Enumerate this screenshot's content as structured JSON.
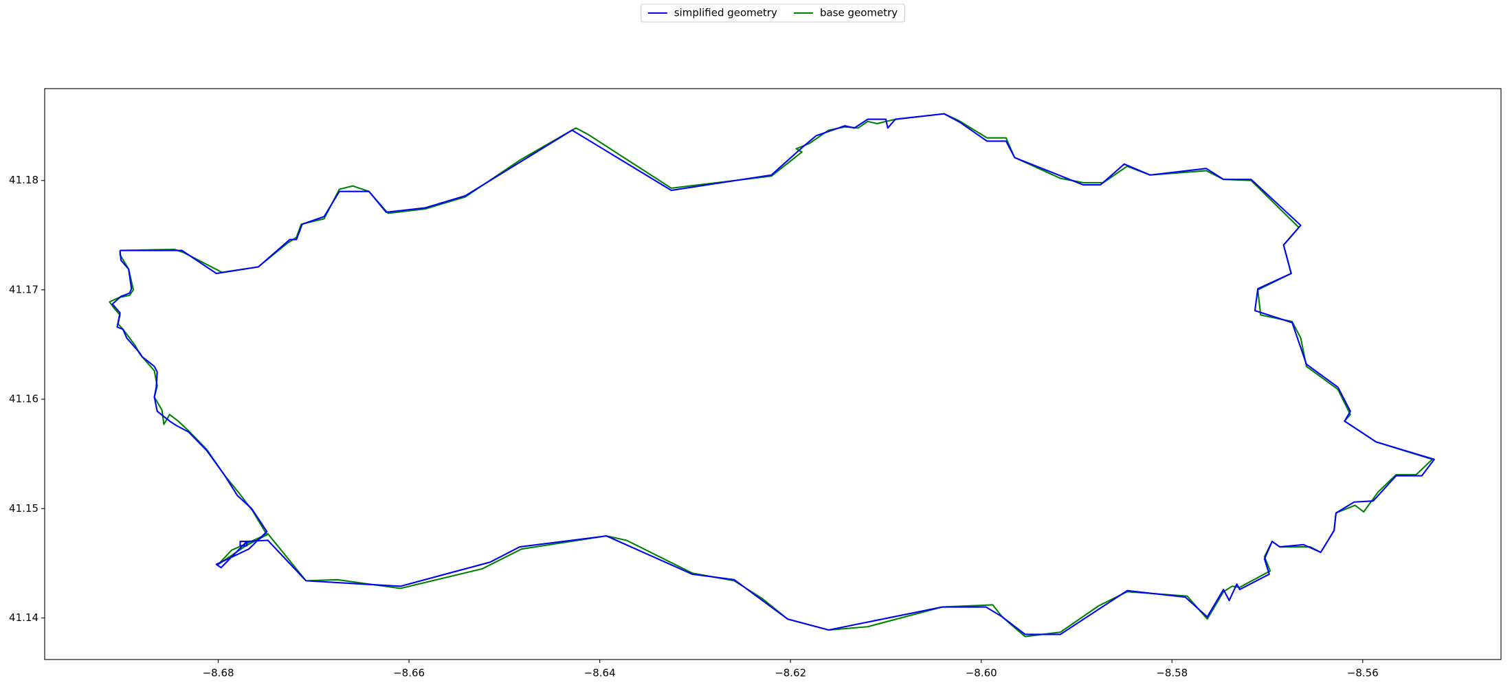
{
  "chart_data": {
    "type": "line",
    "legend": "upper center",
    "xlim": [
      -8.6982,
      -8.5455
    ],
    "ylim": [
      41.1362,
      41.1884
    ],
    "xticks": [
      {
        "value": -8.68,
        "label": "−8.68"
      },
      {
        "value": -8.66,
        "label": "−8.66"
      },
      {
        "value": -8.64,
        "label": "−8.64"
      },
      {
        "value": -8.62,
        "label": "−8.62"
      },
      {
        "value": -8.6,
        "label": "−8.60"
      },
      {
        "value": -8.58,
        "label": "−8.58"
      },
      {
        "value": -8.56,
        "label": "−8.56"
      }
    ],
    "yticks": [
      41.14,
      41.15,
      41.16,
      41.17,
      41.18
    ],
    "series": [
      {
        "name": "simplified geometry",
        "color": "#0000ff",
        "x": [
          -8.6903,
          -8.6838,
          -8.6802,
          -8.6758,
          -8.6725,
          -8.6718,
          -8.6712,
          -8.6689,
          -8.6673,
          -8.6642,
          -8.6624,
          -8.6583,
          -8.6541,
          -8.6429,
          -8.6325,
          -8.622,
          -8.6188,
          -8.6173,
          -8.6143,
          -8.6133,
          -8.6119,
          -8.61,
          -8.6098,
          -8.609,
          -8.6039,
          -8.6022,
          -8.5994,
          -8.5974,
          -8.5965,
          -8.5893,
          -8.5875,
          -8.585,
          -8.5823,
          -8.5764,
          -8.5746,
          -8.5717,
          -8.5665,
          -8.5683,
          -8.5675,
          -8.571,
          -8.5713,
          -8.5674,
          -8.5659,
          -8.5626,
          -8.5613,
          -8.5619,
          -8.5586,
          -8.5525,
          -8.5538,
          -8.5565,
          -8.5589,
          -8.5609,
          -8.5628,
          -8.563,
          -8.5644,
          -8.5662,
          -8.5687,
          -8.5695,
          -8.5703,
          -8.5698,
          -8.5729,
          -8.5732,
          -8.574,
          -8.5746,
          -8.5763,
          -8.5786,
          -8.5847,
          -8.5917,
          -8.5954,
          -8.5978,
          -8.5995,
          -8.6041,
          -8.616,
          -8.6203,
          -8.6259,
          -8.6303,
          -8.6393,
          -8.6484,
          -8.6515,
          -8.6609,
          -8.6708,
          -8.6748,
          -8.677,
          -8.677,
          -8.6777,
          -8.6777,
          -8.677,
          -8.6797,
          -8.6802,
          -8.6768,
          -8.6749,
          -8.6765,
          -8.678,
          -8.6793,
          -8.6812,
          -8.6831,
          -8.6844,
          -8.6851,
          -8.6864,
          -8.6867,
          -8.6865,
          -8.6864,
          -8.6867,
          -8.688,
          -8.6882,
          -8.6896,
          -8.69,
          -8.6906,
          -8.6903,
          -8.6911,
          -8.6902,
          -8.6893,
          -8.6891,
          -8.6894,
          -8.6902,
          -8.6903
        ],
        "y": [
          41.1736,
          41.1736,
          41.1715,
          41.1721,
          41.1746,
          41.1746,
          41.176,
          41.1767,
          41.179,
          41.179,
          41.1771,
          41.1775,
          41.1786,
          41.1846,
          41.1791,
          41.1805,
          41.183,
          41.1841,
          41.185,
          41.1848,
          41.1856,
          41.1856,
          41.1848,
          41.1856,
          41.1861,
          41.1853,
          41.1836,
          41.1836,
          41.1821,
          41.1796,
          41.1796,
          41.1815,
          41.1805,
          41.1811,
          41.1801,
          41.1801,
          41.1759,
          41.1741,
          41.1715,
          41.1701,
          41.1681,
          41.167,
          41.1632,
          41.1611,
          41.1589,
          41.158,
          41.1561,
          41.1545,
          41.153,
          41.153,
          41.1507,
          41.1506,
          41.1496,
          41.148,
          41.146,
          41.1467,
          41.1465,
          41.147,
          41.1454,
          41.144,
          41.1426,
          41.1431,
          41.1416,
          41.1426,
          41.1401,
          41.1419,
          41.1425,
          41.1385,
          41.1385,
          41.1401,
          41.141,
          41.141,
          41.1389,
          41.1399,
          41.1435,
          41.144,
          41.1475,
          41.1465,
          41.1451,
          41.1429,
          41.1434,
          41.1471,
          41.147,
          41.1466,
          41.1466,
          41.147,
          41.147,
          41.1446,
          41.1449,
          41.1463,
          41.1479,
          41.15,
          41.1512,
          41.153,
          41.1553,
          41.157,
          41.1576,
          41.158,
          41.1589,
          41.1602,
          41.1611,
          41.1625,
          41.163,
          41.1639,
          41.1642,
          41.1656,
          41.1664,
          41.1666,
          41.1679,
          41.1687,
          41.1694,
          41.1697,
          41.1701,
          41.1719,
          41.1727,
          41.1736
        ]
      },
      {
        "name": "base geometry",
        "color": "#008000",
        "x": [
          -8.6903,
          -8.6846,
          -8.6836,
          -8.6796,
          -8.6758,
          -8.6727,
          -8.6718,
          -8.6713,
          -8.6689,
          -8.6673,
          -8.6659,
          -8.6642,
          -8.6622,
          -8.6583,
          -8.6541,
          -8.6483,
          -8.6425,
          -8.6412,
          -8.6325,
          -8.622,
          -8.6188,
          -8.6194,
          -8.618,
          -8.616,
          -8.6143,
          -8.6129,
          -8.6119,
          -8.6109,
          -8.61,
          -8.6089,
          -8.6039,
          -8.6024,
          -8.5994,
          -8.5974,
          -8.5965,
          -8.5917,
          -8.5893,
          -8.5872,
          -8.5847,
          -8.5823,
          -8.5764,
          -8.5746,
          -8.5717,
          -8.5667,
          -8.5683,
          -8.5675,
          -8.571,
          -8.5707,
          -8.5674,
          -8.5665,
          -8.5659,
          -8.5626,
          -8.5613,
          -8.5619,
          -8.5586,
          -8.5527,
          -8.5544,
          -8.5565,
          -8.5584,
          -8.5599,
          -8.5608,
          -8.5628,
          -8.563,
          -8.5644,
          -8.5655,
          -8.5687,
          -8.5695,
          -8.5703,
          -8.5697,
          -8.5729,
          -8.5737,
          -8.5746,
          -8.5763,
          -8.5784,
          -8.5847,
          -8.5877,
          -8.5917,
          -8.5954,
          -8.5978,
          -8.5988,
          -8.6041,
          -8.6119,
          -8.616,
          -8.6203,
          -8.623,
          -8.6259,
          -8.6303,
          -8.6372,
          -8.6393,
          -8.6482,
          -8.6523,
          -8.6609,
          -8.6675,
          -8.6708,
          -8.6748,
          -8.6768,
          -8.6786,
          -8.68,
          -8.6771,
          -8.6749,
          -8.6764,
          -8.6778,
          -8.6793,
          -8.6812,
          -8.6831,
          -8.6842,
          -8.6851,
          -8.6857,
          -8.6859,
          -8.6867,
          -8.6864,
          -8.6867,
          -8.6882,
          -8.6887,
          -8.6899,
          -8.6905,
          -8.6903,
          -8.6909,
          -8.6914,
          -8.6904,
          -8.6893,
          -8.6889,
          -8.6894,
          -8.6898,
          -8.6903,
          -8.6903
        ],
        "y": [
          41.1736,
          41.1737,
          41.1734,
          41.1716,
          41.1721,
          41.1743,
          41.1748,
          41.176,
          41.1765,
          41.1792,
          41.1795,
          41.179,
          41.177,
          41.1774,
          41.1785,
          41.1819,
          41.1848,
          41.1842,
          41.1793,
          41.1804,
          41.1826,
          41.1829,
          41.1834,
          41.1846,
          41.1849,
          41.1848,
          41.1854,
          41.1852,
          41.1854,
          41.1856,
          41.1861,
          41.1855,
          41.1839,
          41.1839,
          41.1821,
          41.1802,
          41.1798,
          41.1798,
          41.1813,
          41.1805,
          41.1809,
          41.1801,
          41.18,
          41.1757,
          41.1741,
          41.1715,
          41.17,
          41.1677,
          41.1671,
          41.1656,
          41.163,
          41.1609,
          41.1586,
          41.158,
          41.1561,
          41.1545,
          41.1531,
          41.1531,
          41.1515,
          41.1497,
          41.1503,
          41.1496,
          41.148,
          41.146,
          41.1465,
          41.1465,
          41.147,
          41.1456,
          41.1443,
          41.1428,
          41.1429,
          41.1424,
          41.1399,
          41.142,
          41.1424,
          41.1411,
          41.1387,
          41.1383,
          41.1401,
          41.1412,
          41.141,
          41.1392,
          41.1389,
          41.1399,
          41.1418,
          41.1434,
          41.1441,
          41.1471,
          41.1475,
          41.1463,
          41.1445,
          41.1427,
          41.1435,
          41.1434,
          41.1477,
          41.1469,
          41.1462,
          41.1449,
          41.1466,
          41.1476,
          41.1498,
          41.1514,
          41.153,
          41.1554,
          41.1571,
          41.158,
          41.1586,
          41.1577,
          41.159,
          41.1602,
          41.1612,
          41.1626,
          41.1641,
          41.1649,
          41.1663,
          41.1669,
          41.1677,
          41.1683,
          41.1689,
          41.1693,
          41.1695,
          41.17,
          41.1719,
          41.1725,
          41.1732,
          41.1736
        ]
      }
    ]
  }
}
